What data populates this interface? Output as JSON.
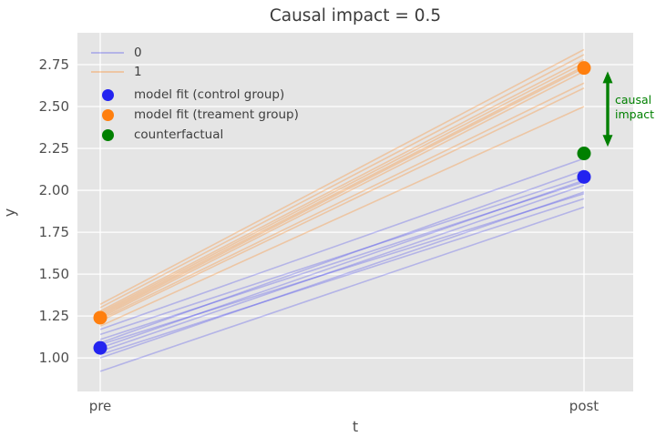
{
  "title": "Causal impact = 0.5",
  "colors": {
    "control": "#2323f0",
    "treatment": "#ff7f0e",
    "counterfactual": "#008000",
    "plot_bg": "#e5e5e5",
    "grid": "#ffffff",
    "figure_bg": "#ffffff",
    "title_text": "#3b3b3b",
    "tick_text": "#4f4f4f"
  },
  "legend": {
    "items": [
      {
        "label": "0",
        "marker": "line",
        "color_key": "control"
      },
      {
        "label": "1",
        "marker": "line",
        "color_key": "treatment"
      },
      {
        "label": "model fit (control group)",
        "marker": "dot",
        "color_key": "control"
      },
      {
        "label": "model fit (treament group)",
        "marker": "dot",
        "color_key": "treatment"
      },
      {
        "label": "counterfactual",
        "marker": "dot",
        "color_key": "counterfactual"
      }
    ]
  },
  "chart_data": {
    "type": "line",
    "title": "Causal impact = 0.5",
    "xlabel": "t",
    "ylabel": "y",
    "categories": [
      "pre",
      "post"
    ],
    "yticks": [
      1.0,
      1.25,
      1.5,
      1.75,
      2.0,
      2.25,
      2.5,
      2.75
    ],
    "ytick_labels": [
      "1.00",
      "1.25",
      "1.50",
      "1.75",
      "2.00",
      "2.25",
      "2.50",
      "2.75"
    ],
    "ylim": [
      0.8,
      2.94
    ],
    "grid": true,
    "legend_position": "upper left",
    "series": [
      {
        "name": "0",
        "color_key": "control",
        "alpha": 0.25,
        "lines": [
          [
            0.92,
            1.9
          ],
          [
            1.0,
            1.99
          ],
          [
            1.02,
            1.95
          ],
          [
            1.04,
            2.03
          ],
          [
            1.06,
            2.06
          ],
          [
            1.08,
            1.98
          ],
          [
            1.09,
            2.12
          ],
          [
            1.11,
            2.05
          ],
          [
            1.14,
            2.08
          ],
          [
            1.17,
            2.19
          ]
        ]
      },
      {
        "name": "1",
        "color_key": "treatment",
        "alpha": 0.3,
        "lines": [
          [
            1.19,
            2.5
          ],
          [
            1.22,
            2.61
          ],
          [
            1.23,
            2.64
          ],
          [
            1.24,
            2.71
          ],
          [
            1.25,
            2.73
          ],
          [
            1.26,
            2.74
          ],
          [
            1.27,
            2.76
          ],
          [
            1.28,
            2.78
          ],
          [
            1.3,
            2.81
          ],
          [
            1.32,
            2.84
          ]
        ]
      }
    ],
    "points": [
      {
        "label": "model fit (control group)",
        "color_key": "control",
        "x": [
          "pre",
          "post"
        ],
        "y": [
          1.06,
          2.08
        ]
      },
      {
        "label": "model fit (treament group)",
        "color_key": "treatment",
        "x": [
          "pre",
          "post"
        ],
        "y": [
          1.24,
          2.73
        ]
      },
      {
        "label": "counterfactual",
        "color_key": "counterfactual",
        "x": [
          "post"
        ],
        "y": [
          2.22
        ]
      }
    ],
    "annotation": {
      "label": "causal\nimpact",
      "arrow_y_top": 2.71,
      "arrow_y_bottom": 2.26
    }
  }
}
